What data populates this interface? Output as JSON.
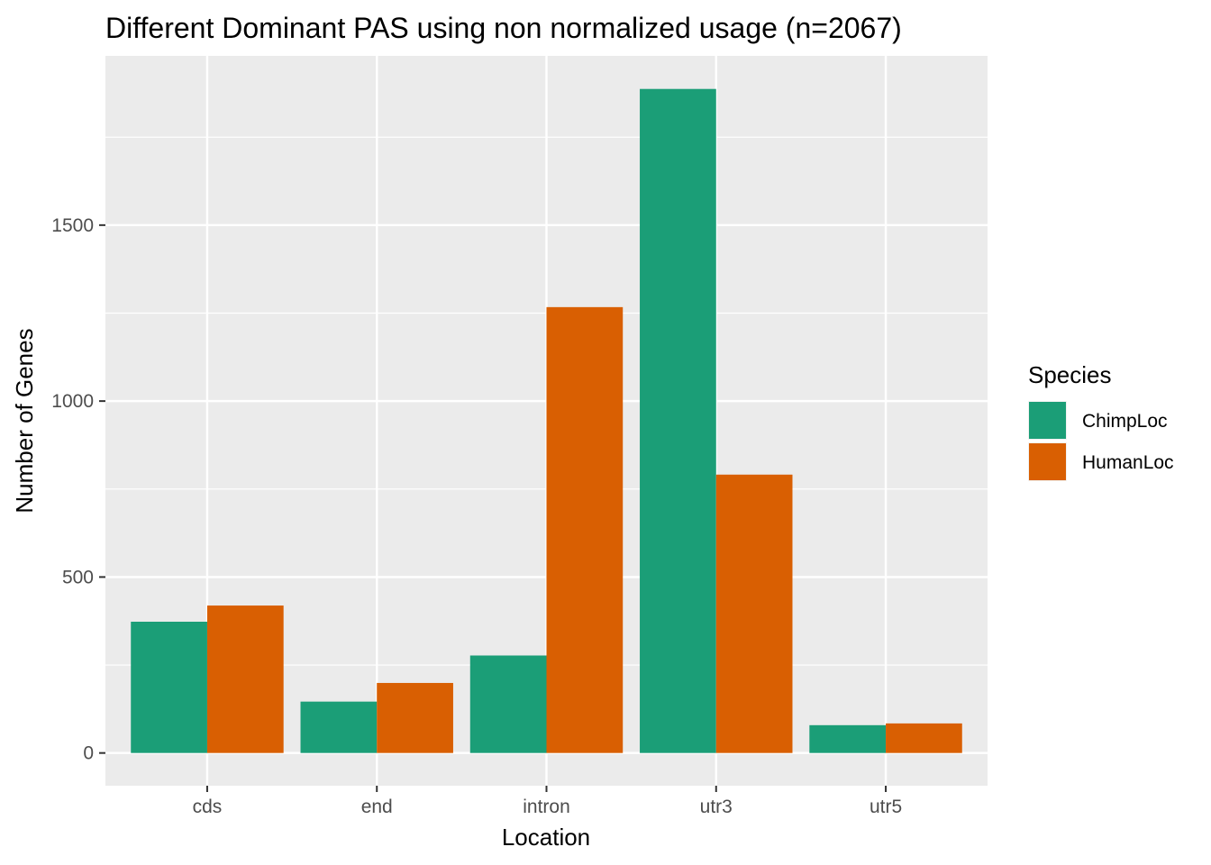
{
  "chart_data": {
    "type": "bar",
    "title": "Different Dominant PAS using non normalized usage (n=2067)",
    "xlabel": "Location",
    "ylabel": "Number of Genes",
    "categories": [
      "cds",
      "end",
      "intron",
      "utr3",
      "utr5"
    ],
    "series": [
      {
        "name": "ChimpLoc",
        "color": "#1B9E77",
        "values": [
          373,
          146,
          277,
          1887,
          79
        ]
      },
      {
        "name": "HumanLoc",
        "color": "#D95F02",
        "values": [
          419,
          199,
          1267,
          791,
          84
        ]
      }
    ],
    "ylim": [
      -93,
      1981
    ],
    "yticks": [
      0,
      500,
      1000,
      1500
    ],
    "legend_title": "Species",
    "legend_position": "right",
    "grid": true,
    "panel_background": "#EBEBEB"
  }
}
